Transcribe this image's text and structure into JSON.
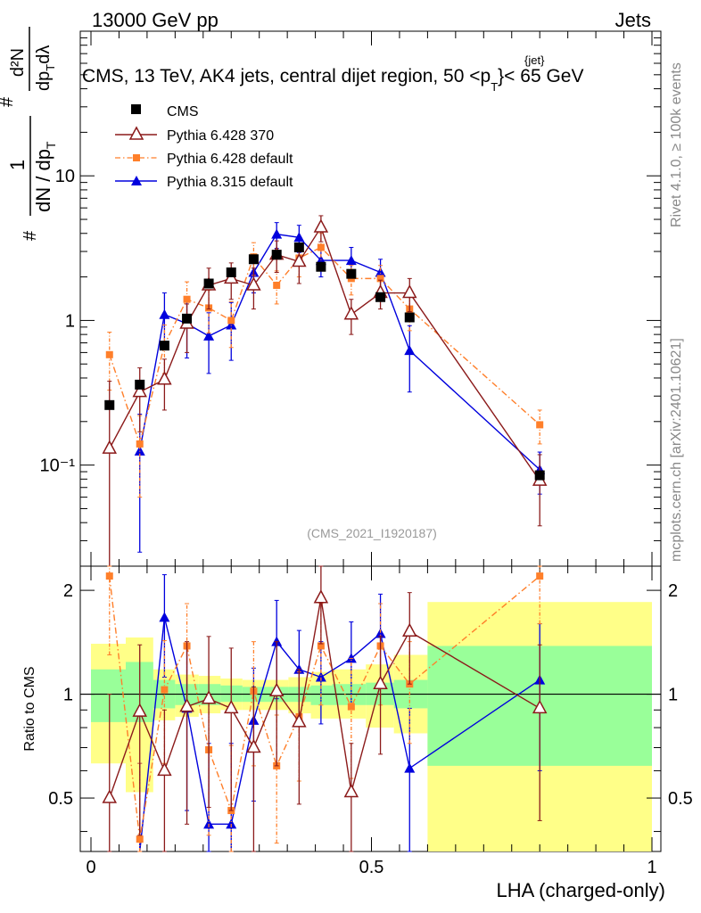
{
  "header": {
    "left": "13000 GeV pp",
    "right": "Jets",
    "title_main": "CMS, 13 TeV, AK4 jets, central dijet region, 50 <p",
    "title_sup": "{jet}",
    "title_sub": "T",
    "title_end": "}< 65 GeV",
    "side_top": "Rivet 4.1.0, ≥ 100k events",
    "side_bottom": "mcplots.cern.ch [arXiv:2401.10621]",
    "watermark": "(CMS_2021_I1920187)"
  },
  "ylabel_main": {
    "num1": "1",
    "den": "dN / dp",
    "den_sub": "T",
    "hash": "#",
    "frac2_num": "d²N",
    "frac2_den": "dp",
    "frac2_den_sub": "T",
    "frac2_den_end": "dλ"
  },
  "ylabel_ratio": "Ratio to CMS",
  "xlabel": "LHA (charged-only)",
  "colors": {
    "cms": "#000000",
    "p6_370": "#8b1a1a",
    "p6_default": "#ff7f2a",
    "p8": "#0000dd",
    "band_inner": "#99ff99",
    "band_outer": "#ffff88"
  },
  "chart_data": [
    {
      "type": "scatter",
      "name": "main",
      "xlim": [
        0,
        1
      ],
      "ylim": [
        0.02,
        100
      ],
      "yscale": "log",
      "y_tick_labels": [
        "10⁻¹",
        "1",
        "10"
      ],
      "y_tick_values": [
        0.1,
        1,
        10
      ],
      "legend": [
        "CMS",
        "Pythia 6.428 370",
        "Pythia 6.428 default",
        "Pythia 8.315 default"
      ],
      "series": [
        {
          "name": "CMS",
          "style": "marker-square",
          "x": [
            0.033,
            0.087,
            0.131,
            0.171,
            0.21,
            0.25,
            0.29,
            0.331,
            0.371,
            0.41,
            0.464,
            0.516,
            0.568,
            0.8
          ],
          "y": [
            0.26,
            0.36,
            0.67,
            1.03,
            1.8,
            2.15,
            2.65,
            2.85,
            3.2,
            2.35,
            2.1,
            1.45,
            1.05,
            0.085
          ]
        },
        {
          "name": "Pythia 6.428 370",
          "style": "open-triangle",
          "x": [
            0.033,
            0.087,
            0.131,
            0.171,
            0.21,
            0.25,
            0.29,
            0.331,
            0.371,
            0.41,
            0.464,
            0.516,
            0.568,
            0.8
          ],
          "y": [
            0.13,
            0.32,
            0.39,
            0.95,
            1.75,
            1.95,
            1.75,
            2.85,
            2.55,
            4.4,
            1.1,
            1.55,
            1.55,
            0.078
          ],
          "err": [
            0.25,
            0.15,
            0.15,
            0.35,
            0.55,
            0.55,
            0.55,
            0.7,
            0.75,
            0.9,
            0.3,
            0.35,
            0.4,
            0.04
          ]
        },
        {
          "name": "Pythia 6.428 default",
          "style": "small-square-dashdot",
          "x": [
            0.033,
            0.087,
            0.131,
            0.171,
            0.21,
            0.25,
            0.29,
            0.331,
            0.371,
            0.41,
            0.464,
            0.516,
            0.568,
            0.8
          ],
          "y": [
            0.58,
            0.14,
            0.68,
            1.4,
            1.22,
            1.0,
            2.75,
            1.75,
            2.7,
            3.2,
            1.95,
            1.95,
            1.2,
            0.19
          ],
          "err": [
            0.25,
            0.08,
            0.25,
            0.45,
            0.4,
            0.35,
            0.7,
            0.45,
            0.7,
            0.8,
            0.45,
            0.45,
            0.35,
            0.05
          ]
        },
        {
          "name": "Pythia 8.315 default",
          "style": "filled-triangle",
          "x": [
            0.033,
            0.087,
            0.131,
            0.171,
            0.21,
            0.25,
            0.29,
            0.331,
            0.371,
            0.41,
            0.464,
            0.516,
            0.568,
            0.8
          ],
          "y": [
            null,
            0.125,
            1.1,
            0.95,
            0.78,
            0.93,
            2.15,
            3.95,
            3.75,
            2.6,
            2.6,
            2.15,
            0.62,
            0.093
          ],
          "err": [
            null,
            0.1,
            0.45,
            0.4,
            0.35,
            0.4,
            0.6,
            0.8,
            0.8,
            0.6,
            0.6,
            0.5,
            0.3,
            0.03
          ]
        }
      ]
    },
    {
      "type": "scatter",
      "name": "ratio",
      "xlim": [
        0,
        1
      ],
      "ylim": [
        0.35,
        2.35
      ],
      "yscale": "log",
      "x_tick_labels": [
        "0",
        "0.5",
        "1"
      ],
      "x_tick_values": [
        0,
        0.5,
        1
      ],
      "y_tick_labels": [
        "0.5",
        "1",
        "2"
      ],
      "y_tick_values": [
        0.5,
        1,
        2
      ],
      "bands": {
        "edges": [
          0,
          0.062,
          0.111,
          0.15,
          0.192,
          0.231,
          0.27,
          0.31,
          0.352,
          0.392,
          0.43,
          0.49,
          0.54,
          0.6,
          1.0
        ],
        "inner_lo": [
          0.83,
          0.83,
          0.91,
          0.93,
          0.93,
          0.95,
          0.95,
          0.95,
          0.95,
          0.93,
          0.93,
          0.93,
          0.91,
          0.62
        ],
        "inner_hi": [
          1.18,
          1.24,
          1.1,
          1.07,
          1.07,
          1.06,
          1.05,
          1.05,
          1.05,
          1.06,
          1.07,
          1.08,
          1.1,
          1.38
        ],
        "outer_lo": [
          0.63,
          0.52,
          0.84,
          0.86,
          0.88,
          0.9,
          0.9,
          0.9,
          0.88,
          0.85,
          0.85,
          0.8,
          0.77,
          0.33
        ],
        "outer_hi": [
          1.4,
          1.46,
          1.18,
          1.14,
          1.13,
          1.11,
          1.1,
          1.1,
          1.12,
          1.16,
          1.18,
          1.22,
          1.3,
          1.85
        ]
      },
      "series": [
        {
          "name": "Pythia 6.428 370",
          "x": [
            0.033,
            0.087,
            0.131,
            0.171,
            0.21,
            0.25,
            0.29,
            0.331,
            0.371,
            0.41,
            0.464,
            0.516,
            0.568,
            0.8
          ],
          "y": [
            0.5,
            0.89,
            0.6,
            0.92,
            0.97,
            0.91,
            0.7,
            1.02,
            0.83,
            1.9,
            0.52,
            1.07,
            1.52,
            0.91
          ],
          "err": [
            0.5,
            0.5,
            0.3,
            0.5,
            0.5,
            0.45,
            0.35,
            0.4,
            0.35,
            0.5,
            0.2,
            0.4,
            0.45,
            0.48
          ]
        },
        {
          "name": "Pythia 6.428 default",
          "x": [
            0.033,
            0.087,
            0.131,
            0.171,
            0.21,
            0.25,
            0.29,
            0.331,
            0.371,
            0.41,
            0.464,
            0.516,
            0.568,
            0.8
          ],
          "y": [
            2.2,
            0.38,
            1.03,
            1.38,
            0.69,
            0.46,
            1.02,
            0.62,
            0.86,
            1.38,
            0.92,
            1.38,
            1.07,
            2.2
          ],
          "err": [
            0.9,
            0.25,
            0.4,
            0.45,
            0.3,
            0.25,
            0.4,
            0.25,
            0.3,
            0.45,
            0.35,
            0.45,
            0.35,
            0.6
          ]
        },
        {
          "name": "Pythia 8.315 default",
          "x": [
            0.033,
            0.087,
            0.131,
            0.171,
            0.21,
            0.25,
            0.29,
            0.331,
            0.371,
            0.41,
            0.464,
            0.516,
            0.568,
            0.8
          ],
          "y": [
            null,
            0.33,
            1.67,
            0.91,
            0.42,
            0.42,
            0.84,
            1.42,
            1.18,
            1.12,
            1.27,
            1.5,
            0.61,
            1.1
          ],
          "err": [
            null,
            0.3,
            0.55,
            0.45,
            0.3,
            0.3,
            0.35,
            0.45,
            0.35,
            0.3,
            0.35,
            0.45,
            0.3,
            0.5
          ]
        }
      ]
    }
  ]
}
